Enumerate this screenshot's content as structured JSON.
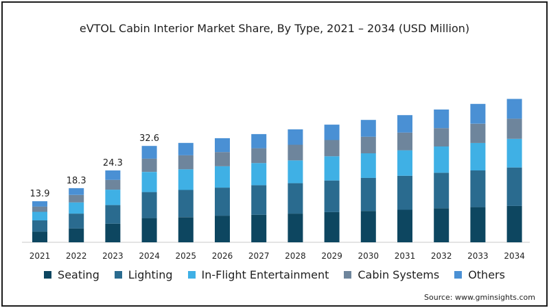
{
  "chart_data": {
    "type": "bar",
    "stacked": true,
    "title": "eVTOL Cabin Interior Market Share, By Type, 2021 – 2034 (USD Million)",
    "categories": [
      "2021",
      "2022",
      "2023",
      "2024",
      "2025",
      "2026",
      "2027",
      "2028",
      "2029",
      "2030",
      "2031",
      "2032",
      "2033",
      "2034"
    ],
    "totals": [
      13.9,
      18.3,
      24.3,
      32.6,
      33.6,
      35.2,
      36.6,
      38.2,
      39.8,
      41.4,
      43.0,
      44.9,
      46.8,
      48.5
    ],
    "total_labels": [
      "13.9",
      "18.3",
      "24.3",
      "32.6",
      "",
      "",
      "",
      "",
      "",
      "",
      "",
      "",
      "",
      ""
    ],
    "series": [
      {
        "name": "Seating",
        "color": "#0d4660",
        "values": [
          3.6,
          4.7,
          6.3,
          8.2,
          8.5,
          9.0,
          9.3,
          9.7,
          10.2,
          10.6,
          11.0,
          11.5,
          11.9,
          12.3
        ]
      },
      {
        "name": "Lighting",
        "color": "#2a6b8f",
        "values": [
          3.8,
          5.0,
          6.3,
          8.8,
          9.2,
          9.5,
          10.0,
          10.3,
          10.7,
          11.2,
          11.5,
          12.0,
          12.4,
          13.0
        ]
      },
      {
        "name": "In-Flight Entertainment",
        "color": "#3fb0e5",
        "values": [
          2.9,
          3.8,
          5.2,
          6.8,
          7.0,
          7.2,
          7.5,
          7.7,
          8.2,
          8.3,
          8.6,
          8.9,
          9.3,
          9.7
        ]
      },
      {
        "name": "Cabin Systems",
        "color": "#6e859c",
        "values": [
          1.8,
          2.5,
          3.3,
          4.5,
          4.7,
          4.8,
          5.0,
          5.3,
          5.5,
          5.6,
          6.0,
          6.2,
          6.5,
          6.8
        ]
      },
      {
        "name": "Others",
        "color": "#4a90d4",
        "values": [
          1.8,
          2.3,
          3.2,
          4.3,
          4.2,
          4.7,
          4.8,
          5.2,
          5.2,
          5.7,
          5.9,
          6.3,
          6.7,
          6.7
        ]
      }
    ],
    "ylim": [
      0,
      50
    ],
    "grid": false,
    "legend": "bottom",
    "source": "Source: www.gminsights.com"
  }
}
